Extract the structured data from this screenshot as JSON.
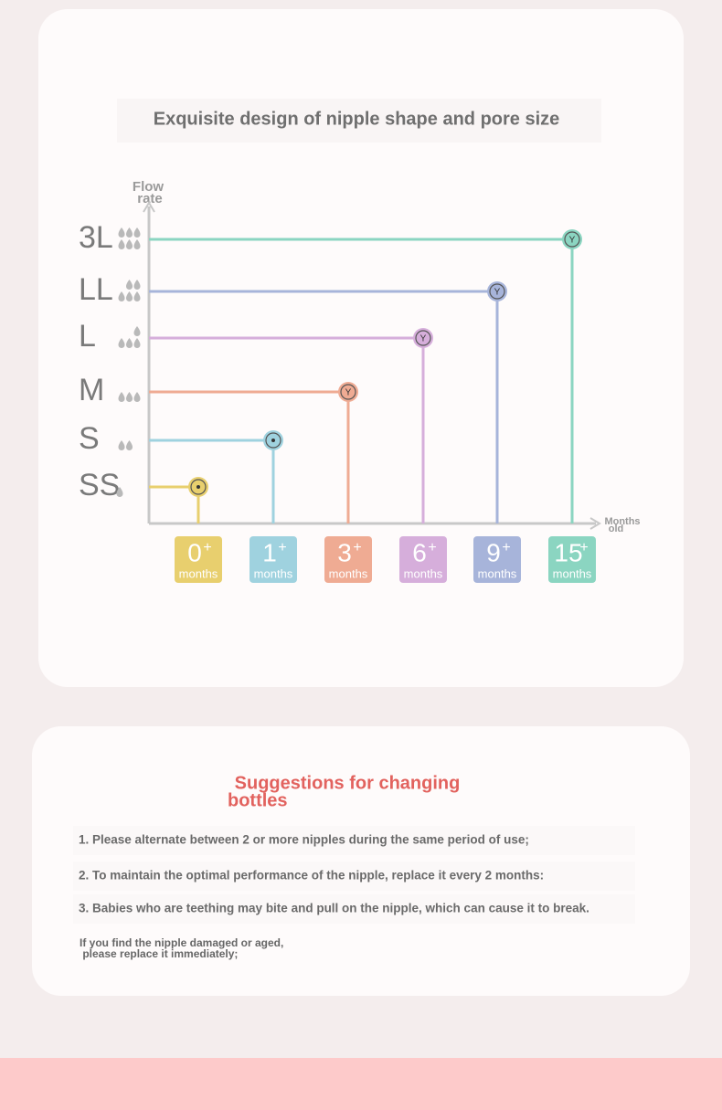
{
  "card1": {
    "title": "Exquisite design of nipple shape and pore size",
    "y_axis_label": [
      "Flow",
      "rate"
    ],
    "x_axis_label": [
      "Months",
      "old"
    ],
    "levels": [
      {
        "size": "SS",
        "drops": 1,
        "age": "0",
        "plus": "+",
        "unit": "months",
        "color": "#e8cf6e"
      },
      {
        "size": "S",
        "drops": 2,
        "age": "1",
        "plus": "+",
        "unit": "months",
        "color": "#9fd2df"
      },
      {
        "size": "M",
        "drops": 3,
        "age": "3",
        "plus": "+",
        "unit": "months",
        "color": "#efab93",
        "icon": "Y"
      },
      {
        "size": "L",
        "drops": 4,
        "age": "6",
        "plus": "+",
        "unit": "months",
        "color": "#d6aedb",
        "icon": "Y"
      },
      {
        "size": "LL",
        "drops": 5,
        "age": "9",
        "plus": "+",
        "unit": "months",
        "color": "#a7b4da",
        "icon": "Y"
      },
      {
        "size": "3L",
        "drops": 6,
        "age": "15",
        "plus": "+",
        "unit": "months",
        "color": "#8bd5c1",
        "icon": "Y"
      }
    ]
  },
  "card2": {
    "title": [
      "Suggestions for changing",
      "bottles"
    ],
    "items": [
      "1. Please alternate between 2 or more nipples during the same period of use;",
      "2. To maintain the optimal performance of the nipple, replace it every 2 months:",
      "3. Babies who are teething may bite and pull on the nipple, which can cause it to break."
    ],
    "note": [
      "If you find the nipple damaged or aged,",
      " please replace it immediately;"
    ]
  }
}
